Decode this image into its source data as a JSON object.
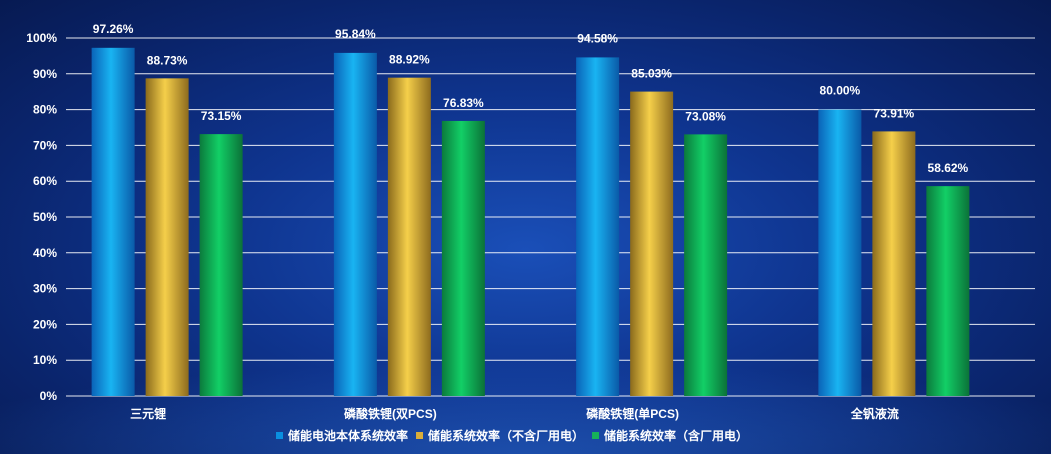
{
  "chart_data": {
    "type": "bar",
    "categories": [
      "三元锂",
      "磷酸铁锂(双PCS)",
      "磷酸铁锂(单PCS)",
      "全钒液流"
    ],
    "series": [
      {
        "name": "储能电池本体系统效率",
        "values": [
          97.26,
          95.84,
          94.58,
          80.0
        ],
        "labels": [
          "97.26%",
          "95.84%",
          "94.58%",
          "80.00%"
        ],
        "color": "#0a8fe0"
      },
      {
        "name": "储能系统效率（不含厂用电）",
        "values": [
          88.73,
          88.92,
          85.03,
          73.91
        ],
        "labels": [
          "88.73%",
          "88.92%",
          "85.03%",
          "73.91%"
        ],
        "color": "#d9ad3a"
      },
      {
        "name": "储能系统效率（含厂用电）",
        "values": [
          73.15,
          76.83,
          73.08,
          58.62
        ],
        "labels": [
          "73.15%",
          "76.83%",
          "73.08%",
          "58.62%"
        ],
        "color": "#16b25a"
      }
    ],
    "yticks": [
      "0%",
      "10%",
      "20%",
      "30%",
      "40%",
      "50%",
      "60%",
      "70%",
      "80%",
      "90%",
      "100%"
    ],
    "ylim": [
      0,
      100
    ],
    "grid": true,
    "legend": "bottom-center",
    "title": "",
    "xlabel": "",
    "ylabel": ""
  }
}
